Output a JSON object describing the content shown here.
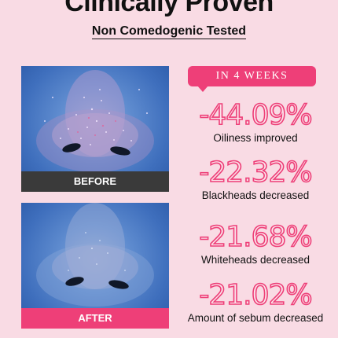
{
  "header": {
    "title": "Clinically Proven",
    "subtitle": "Non Comedogenic Tested"
  },
  "photos": {
    "before_label": "BEFORE",
    "after_label": "AFTER"
  },
  "badge": {
    "label": "IN 4 WEEKS"
  },
  "stats": [
    {
      "value": "-44.09%",
      "description": "Oiliness improved"
    },
    {
      "value": "-22.32%",
      "description": "Blackheads decreased"
    },
    {
      "value": "-21.68%",
      "description": "Whiteheads decreased"
    },
    {
      "value": "-21.02%",
      "description": "Amount of sebum decreased"
    }
  ],
  "colors": {
    "background": "#f9dbe4",
    "accent": "#ee3f78",
    "before_bar": "#3a3a3a"
  }
}
